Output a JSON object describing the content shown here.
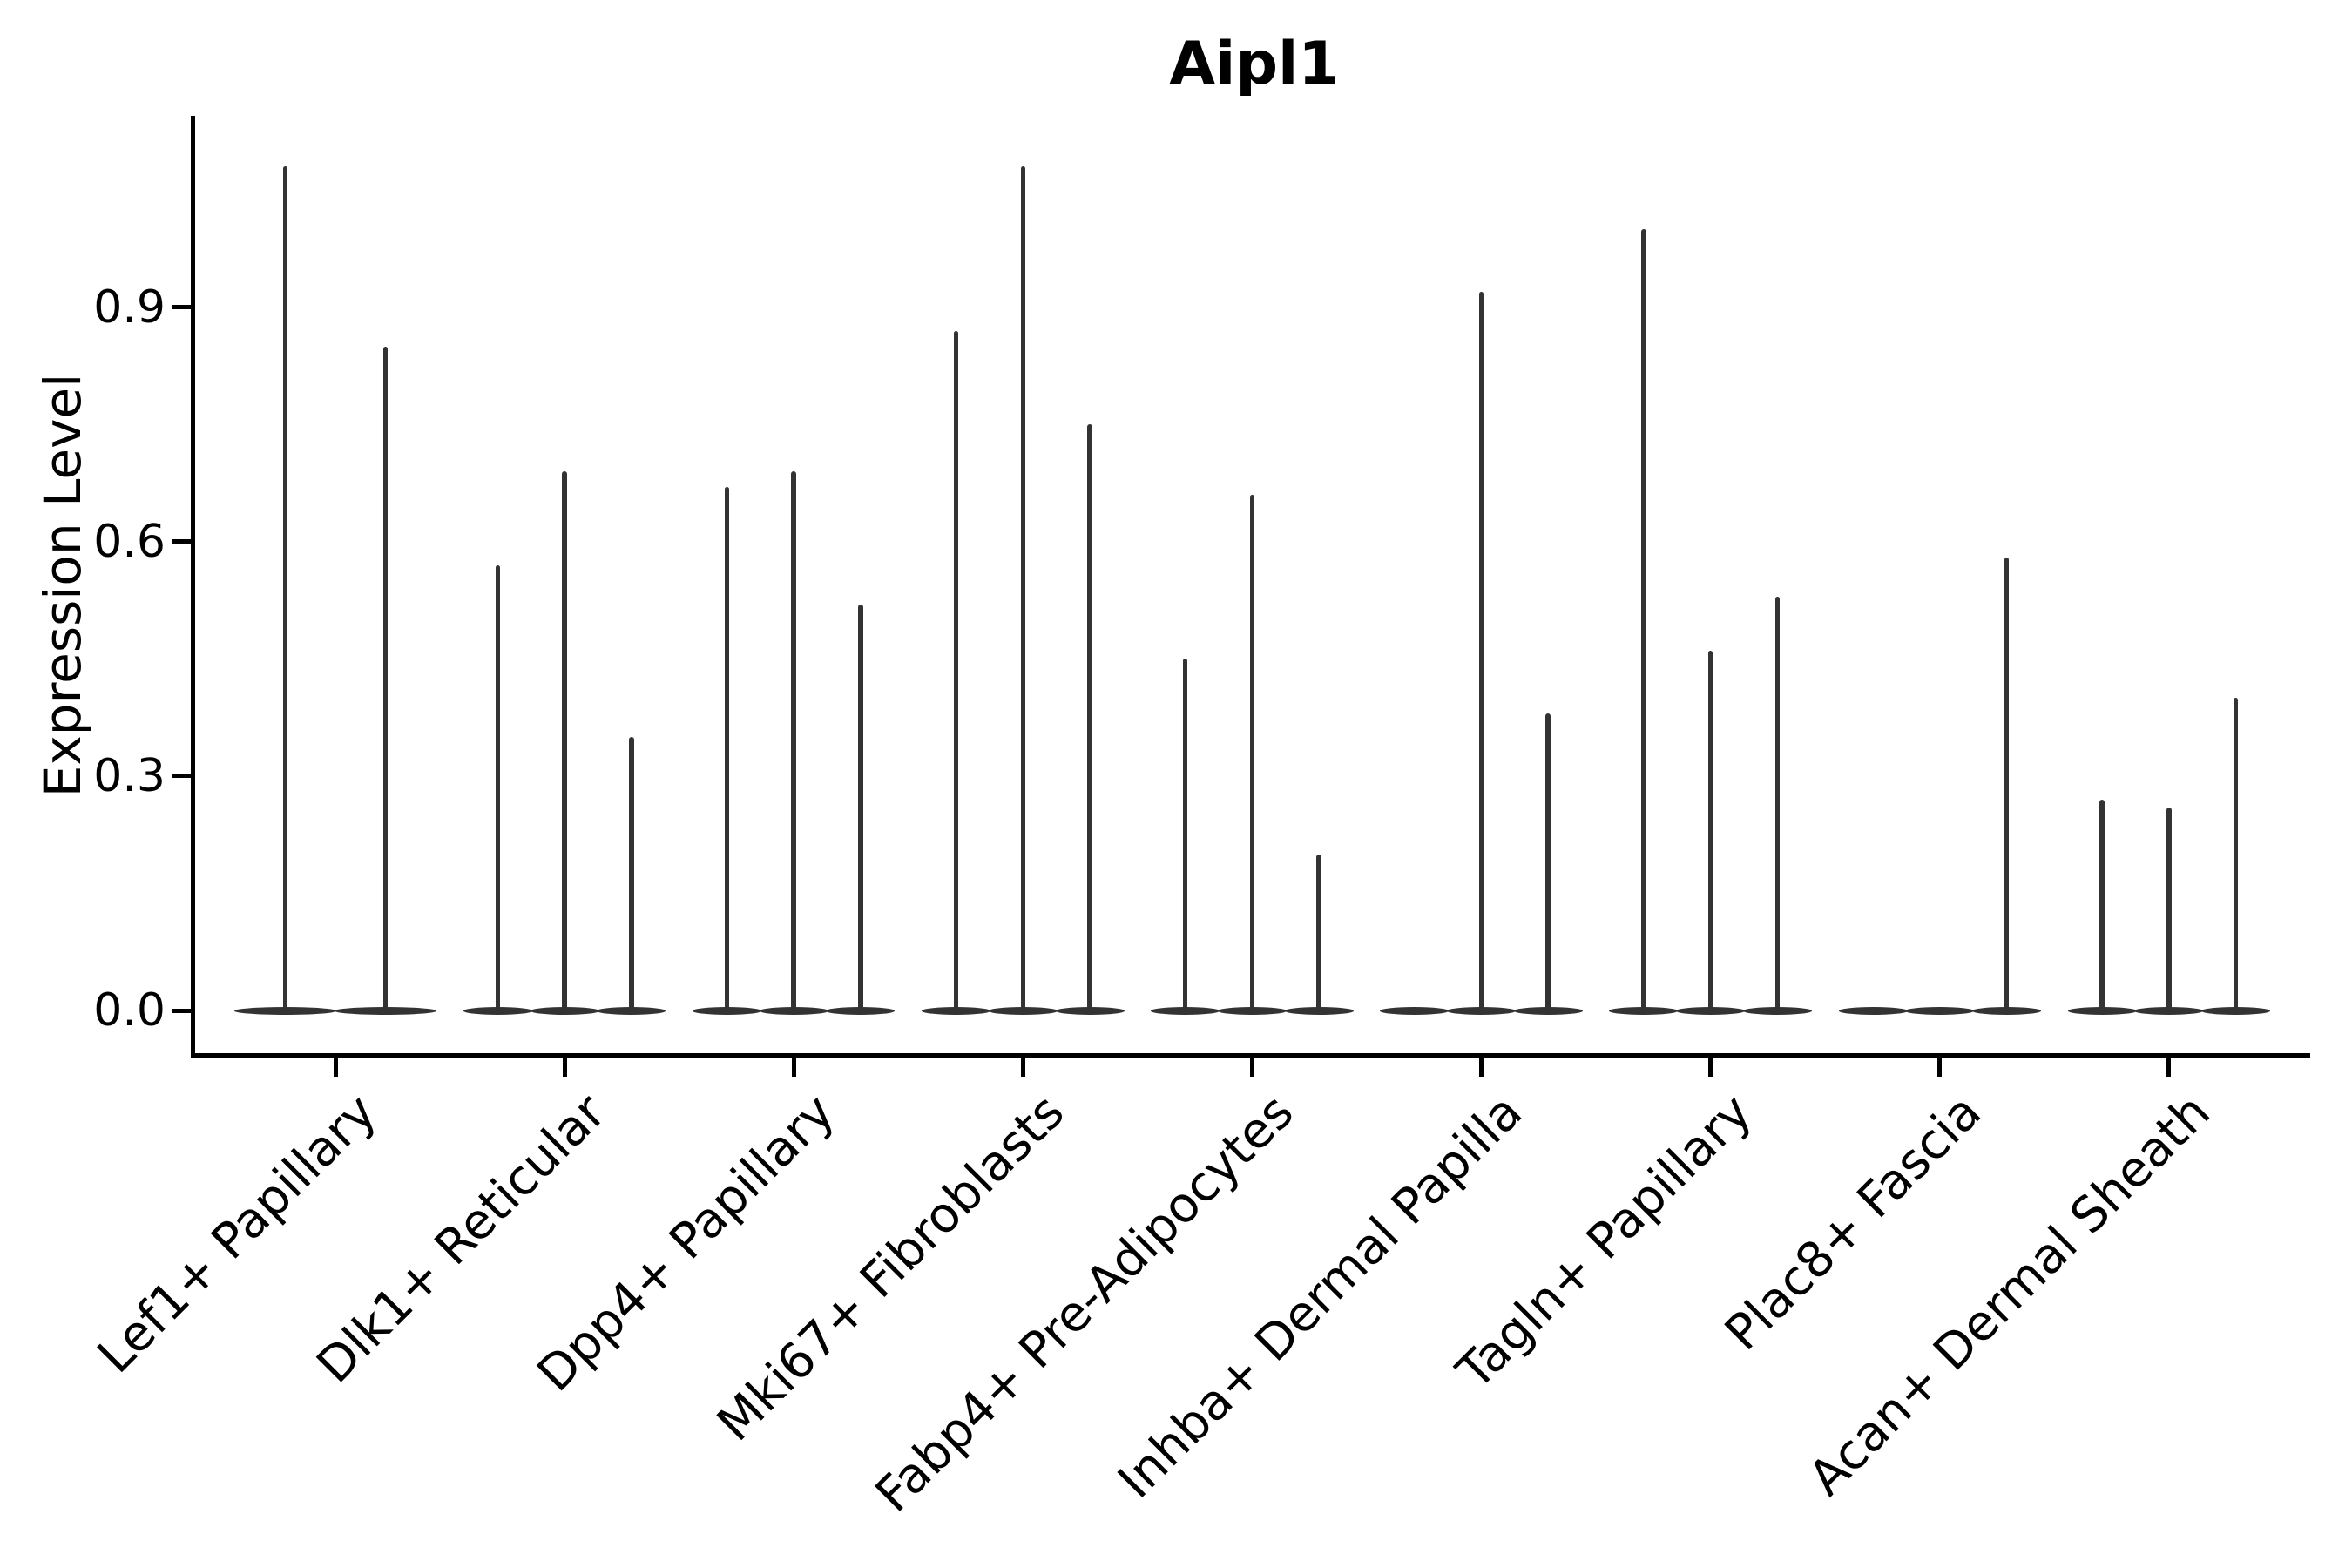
{
  "chart_data": {
    "type": "violin",
    "title": "Aipl1",
    "ylabel": "Expression Level",
    "xlabel": "",
    "ytick_labels": [
      "0.0",
      "0.3",
      "0.6",
      "0.9"
    ],
    "ytick_values": [
      0.0,
      0.3,
      0.6,
      0.9
    ],
    "ylim": [
      -0.06,
      1.15
    ],
    "grid": false,
    "legend": "none",
    "style_note": "thin spike-like violins, all-dark-gray, flat lens-shaped bases at zero",
    "categories": [
      "Lef1+ Papillary",
      "Dlk1+ Reticular",
      "Dpp4+ Papillary",
      "Mki67+ Fibroblasts",
      "Fabp4+ Pre-Adipocytes",
      "Inhba+ Dermal Papilla",
      "Tagln+ Papillary",
      "Plac8+ Fascia",
      "Acan+ Dermal Sheath"
    ],
    "groups": [
      {
        "category": "Lef1+ Papillary",
        "violin_max_heights": [
          1.08,
          0.85
        ]
      },
      {
        "category": "Dlk1+ Reticular",
        "violin_max_heights": [
          0.57,
          0.69,
          0.35
        ]
      },
      {
        "category": "Dpp4+ Papillary",
        "violin_max_heights": [
          0.67,
          0.69,
          0.52
        ]
      },
      {
        "category": "Mki67+ Fibroblasts",
        "violin_max_heights": [
          0.87,
          1.08,
          0.75
        ]
      },
      {
        "category": "Fabp4+ Pre-Adipocytes",
        "violin_max_heights": [
          0.45,
          0.66,
          0.2
        ]
      },
      {
        "category": "Inhba+ Dermal Papilla",
        "violin_max_heights": [
          0.0,
          0.92,
          0.38
        ]
      },
      {
        "category": "Tagln+ Papillary",
        "violin_max_heights": [
          1.0,
          0.46,
          0.53
        ]
      },
      {
        "category": "Plac8+ Fascia",
        "violin_max_heights": [
          0.0,
          0.0,
          0.58
        ]
      },
      {
        "category": "Acan+ Dermal Sheath",
        "violin_max_heights": [
          0.27,
          0.26,
          0.4
        ]
      }
    ],
    "colors": {
      "violin": "#333333",
      "axis": "#000000",
      "text": "#000000",
      "background": "#ffffff"
    }
  }
}
